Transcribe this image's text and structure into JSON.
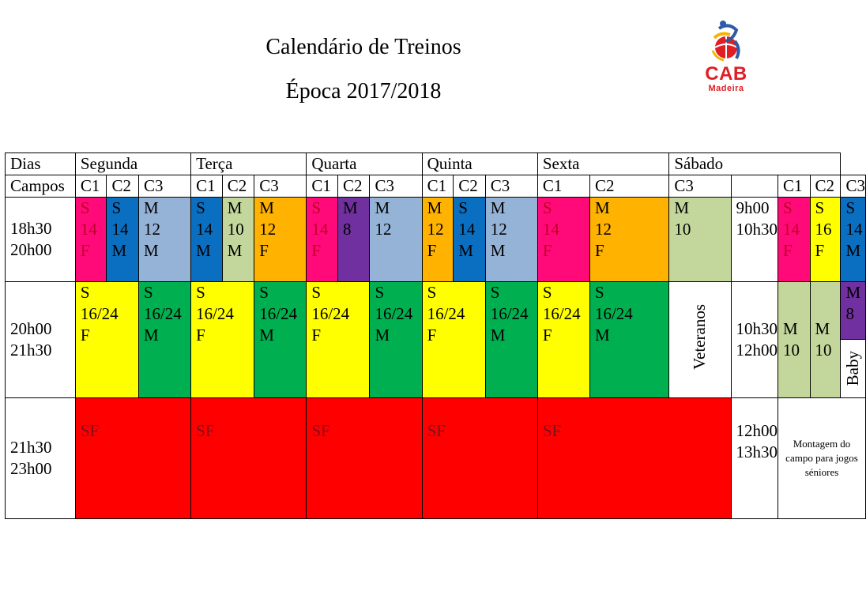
{
  "header": {
    "title": "Calendário de Treinos",
    "subtitle": "Época 2017/2018",
    "logo_text": "CAB",
    "logo_subtext": "Madeira"
  },
  "colors": {
    "pink": "#ff0a78",
    "blue": "#0b6fc1",
    "light_blue": "#95b3d7",
    "sage": "#c3d69b",
    "orange": "#ffb300",
    "purple": "#7030a0",
    "yellow": "#ffff00",
    "green": "#00b050",
    "red": "#ff0000"
  },
  "table": {
    "days_label": "Dias",
    "fields_label": "Campos",
    "days": [
      "Segunda",
      "Terça",
      "Quarta",
      "Quinta",
      "Sexta",
      "Sábado"
    ],
    "fields": [
      "C1",
      "C2",
      "C3"
    ],
    "row1": {
      "time": [
        "18h30",
        "20h00"
      ],
      "cells": [
        [
          "S",
          "14",
          "F"
        ],
        [
          "S",
          "14",
          "M"
        ],
        [
          "M",
          "12",
          "M"
        ],
        [
          "S",
          "14",
          "M"
        ],
        [
          "M",
          "10",
          "M"
        ],
        [
          "M",
          "12",
          "F"
        ],
        [
          "S",
          "14",
          "F"
        ],
        [
          "M",
          "8"
        ],
        [
          "M",
          "12"
        ],
        [
          "M",
          "12",
          "F"
        ],
        [
          "S",
          "14",
          "M"
        ],
        [
          "M",
          "12",
          "M"
        ],
        [
          "S",
          "14",
          "F"
        ],
        [
          "M",
          "12",
          "F"
        ],
        [
          "M",
          "10"
        ]
      ],
      "saturday_time": [
        "9h00",
        "10h30"
      ],
      "saturday_cells": [
        [
          "S",
          "14",
          "F"
        ],
        [
          "S",
          "16",
          "F"
        ],
        [
          "S",
          "14",
          "M"
        ]
      ]
    },
    "row2": {
      "time": [
        "20h00",
        "21h30"
      ],
      "cells": [
        [
          "S",
          "16/24",
          "F"
        ],
        [
          "S",
          "16/24",
          "M"
        ],
        [
          "S",
          "16/24",
          "F"
        ],
        [
          "S",
          "16/24",
          "M"
        ],
        [
          "S",
          "16/24",
          "F"
        ],
        [
          "S",
          "16/24",
          "M"
        ],
        [
          "S",
          "16/24",
          "F"
        ],
        [
          "S",
          "16/24",
          "M"
        ],
        [
          "S",
          "16/24",
          "F"
        ],
        [
          "S",
          "16/24",
          "M"
        ]
      ],
      "veteranos": "Veteranos",
      "saturday_time": [
        "10h30",
        "12h00"
      ],
      "saturday_cells": [
        [
          "M",
          "10"
        ],
        [
          "M",
          "10"
        ],
        [
          "M",
          "8"
        ]
      ],
      "baby": "Baby"
    },
    "row3": {
      "time": [
        "21h30",
        "23h00"
      ],
      "sf_label": "SF",
      "saturday_time": [
        "12h00",
        "13h30"
      ],
      "note": "Montagem do campo para jogos séniores"
    }
  }
}
